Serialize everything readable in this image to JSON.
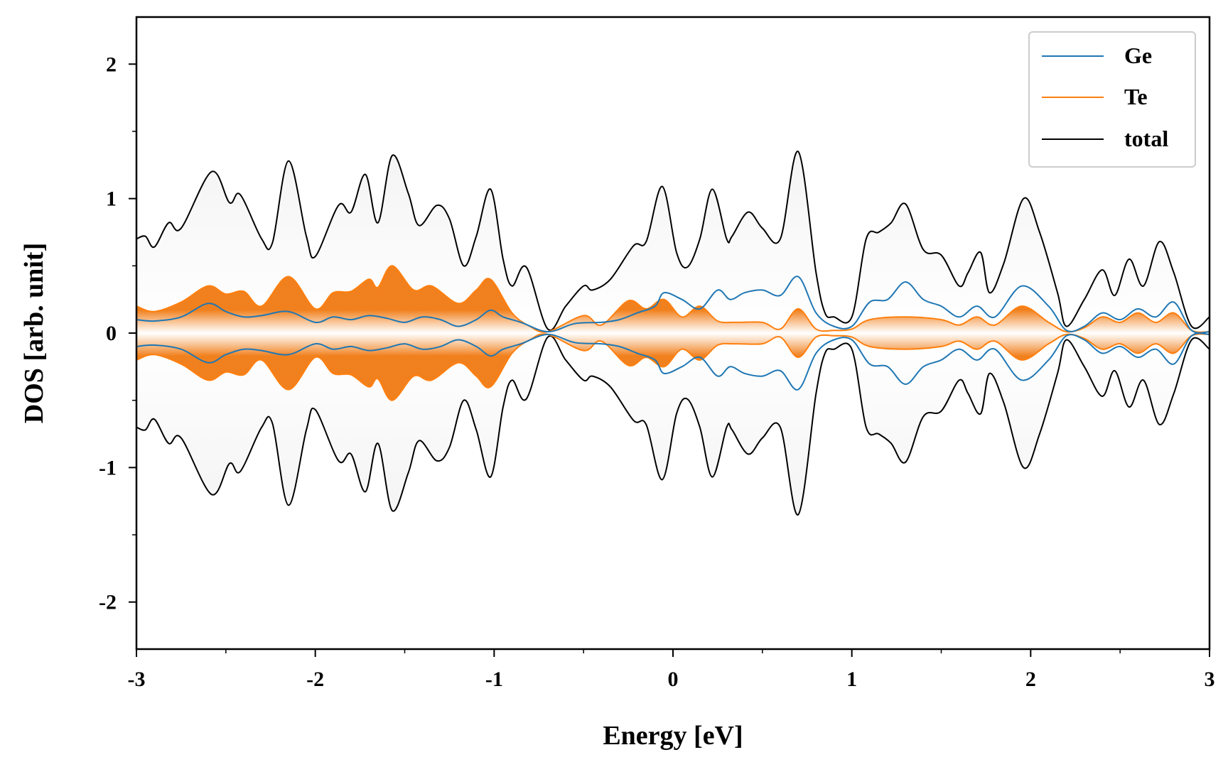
{
  "chart_data": {
    "type": "line",
    "xlabel": "Energy [eV]",
    "ylabel": "DOS [arb. unit]",
    "xlim": [
      -3,
      3
    ],
    "ylim": [
      -2.35,
      2.35
    ],
    "x_ticks": [
      -3,
      -2,
      -1,
      0,
      1,
      2,
      3
    ],
    "y_ticks": [
      -2,
      -1,
      0,
      1,
      2
    ],
    "x_tick_labels": [
      "-3",
      "-2",
      "-1",
      "0",
      "1",
      "2",
      "3"
    ],
    "y_tick_labels": [
      "-2",
      "-1",
      "0",
      "1",
      "2"
    ],
    "legend_position": "top-right",
    "grid": false,
    "mirrored_about_zero": true,
    "series": [
      {
        "name": "Ge",
        "color": "#1f77b4",
        "points": [
          [
            -3.0,
            0.1
          ],
          [
            -2.9,
            0.09
          ],
          [
            -2.75,
            0.12
          ],
          [
            -2.6,
            0.22
          ],
          [
            -2.5,
            0.16
          ],
          [
            -2.4,
            0.12
          ],
          [
            -2.3,
            0.13
          ],
          [
            -2.15,
            0.16
          ],
          [
            -2.0,
            0.08
          ],
          [
            -1.9,
            0.12
          ],
          [
            -1.8,
            0.1
          ],
          [
            -1.7,
            0.13
          ],
          [
            -1.6,
            0.11
          ],
          [
            -1.5,
            0.08
          ],
          [
            -1.4,
            0.12
          ],
          [
            -1.3,
            0.1
          ],
          [
            -1.2,
            0.05
          ],
          [
            -1.1,
            0.1
          ],
          [
            -1.02,
            0.17
          ],
          [
            -0.95,
            0.12
          ],
          [
            -0.85,
            0.08
          ],
          [
            -0.7,
            0.01
          ],
          [
            -0.55,
            0.07
          ],
          [
            -0.4,
            0.08
          ],
          [
            -0.3,
            0.1
          ],
          [
            -0.2,
            0.15
          ],
          [
            -0.1,
            0.2
          ],
          [
            -0.05,
            0.3
          ],
          [
            0.05,
            0.25
          ],
          [
            0.15,
            0.18
          ],
          [
            0.25,
            0.32
          ],
          [
            0.32,
            0.25
          ],
          [
            0.4,
            0.3
          ],
          [
            0.5,
            0.32
          ],
          [
            0.6,
            0.28
          ],
          [
            0.7,
            0.42
          ],
          [
            0.8,
            0.15
          ],
          [
            0.9,
            0.05
          ],
          [
            1.0,
            0.05
          ],
          [
            1.1,
            0.23
          ],
          [
            1.2,
            0.25
          ],
          [
            1.3,
            0.38
          ],
          [
            1.4,
            0.25
          ],
          [
            1.5,
            0.2
          ],
          [
            1.6,
            0.12
          ],
          [
            1.7,
            0.2
          ],
          [
            1.8,
            0.12
          ],
          [
            1.95,
            0.35
          ],
          [
            2.1,
            0.2
          ],
          [
            2.2,
            0.02
          ],
          [
            2.3,
            0.05
          ],
          [
            2.4,
            0.15
          ],
          [
            2.5,
            0.1
          ],
          [
            2.6,
            0.18
          ],
          [
            2.7,
            0.12
          ],
          [
            2.8,
            0.23
          ],
          [
            2.9,
            0.02
          ],
          [
            3.0,
            0.01
          ]
        ]
      },
      {
        "name": "Te",
        "color": "#ff7f0e",
        "points": [
          [
            -3.0,
            0.2
          ],
          [
            -2.9,
            0.16
          ],
          [
            -2.75,
            0.23
          ],
          [
            -2.6,
            0.35
          ],
          [
            -2.5,
            0.29
          ],
          [
            -2.4,
            0.31
          ],
          [
            -2.3,
            0.2
          ],
          [
            -2.15,
            0.42
          ],
          [
            -2.0,
            0.18
          ],
          [
            -1.9,
            0.3
          ],
          [
            -1.8,
            0.31
          ],
          [
            -1.7,
            0.4
          ],
          [
            -1.65,
            0.34
          ],
          [
            -1.57,
            0.5
          ],
          [
            -1.45,
            0.32
          ],
          [
            -1.35,
            0.35
          ],
          [
            -1.2,
            0.22
          ],
          [
            -1.1,
            0.32
          ],
          [
            -1.02,
            0.4
          ],
          [
            -0.9,
            0.15
          ],
          [
            -0.8,
            0.05
          ],
          [
            -0.7,
            0.01
          ],
          [
            -0.5,
            0.13
          ],
          [
            -0.4,
            0.06
          ],
          [
            -0.25,
            0.24
          ],
          [
            -0.15,
            0.18
          ],
          [
            -0.05,
            0.25
          ],
          [
            0.05,
            0.12
          ],
          [
            0.15,
            0.2
          ],
          [
            0.25,
            0.09
          ],
          [
            0.35,
            0.08
          ],
          [
            0.5,
            0.08
          ],
          [
            0.6,
            0.03
          ],
          [
            0.7,
            0.18
          ],
          [
            0.8,
            0.03
          ],
          [
            0.9,
            0.02
          ],
          [
            1.0,
            0.03
          ],
          [
            1.1,
            0.1
          ],
          [
            1.3,
            0.12
          ],
          [
            1.5,
            0.1
          ],
          [
            1.6,
            0.06
          ],
          [
            1.7,
            0.12
          ],
          [
            1.8,
            0.06
          ],
          [
            1.95,
            0.2
          ],
          [
            2.1,
            0.08
          ],
          [
            2.2,
            0.01
          ],
          [
            2.3,
            0.04
          ],
          [
            2.4,
            0.12
          ],
          [
            2.5,
            0.08
          ],
          [
            2.6,
            0.15
          ],
          [
            2.7,
            0.08
          ],
          [
            2.8,
            0.15
          ],
          [
            2.9,
            0.02
          ],
          [
            3.0,
            0.01
          ]
        ]
      },
      {
        "name": "total",
        "color": "#000000",
        "points": [
          [
            -3.0,
            0.7
          ],
          [
            -2.95,
            0.72
          ],
          [
            -2.9,
            0.64
          ],
          [
            -2.82,
            0.82
          ],
          [
            -2.75,
            0.78
          ],
          [
            -2.58,
            1.2
          ],
          [
            -2.48,
            0.97
          ],
          [
            -2.42,
            1.03
          ],
          [
            -2.3,
            0.7
          ],
          [
            -2.24,
            0.67
          ],
          [
            -2.15,
            1.28
          ],
          [
            -2.05,
            0.72
          ],
          [
            -2.0,
            0.57
          ],
          [
            -1.87,
            0.95
          ],
          [
            -1.8,
            0.9
          ],
          [
            -1.72,
            1.18
          ],
          [
            -1.65,
            0.82
          ],
          [
            -1.57,
            1.32
          ],
          [
            -1.48,
            1.04
          ],
          [
            -1.42,
            0.8
          ],
          [
            -1.32,
            0.95
          ],
          [
            -1.25,
            0.85
          ],
          [
            -1.17,
            0.5
          ],
          [
            -1.1,
            0.72
          ],
          [
            -1.02,
            1.07
          ],
          [
            -0.95,
            0.55
          ],
          [
            -0.9,
            0.35
          ],
          [
            -0.82,
            0.49
          ],
          [
            -0.7,
            0.03
          ],
          [
            -0.6,
            0.2
          ],
          [
            -0.5,
            0.35
          ],
          [
            -0.45,
            0.32
          ],
          [
            -0.35,
            0.4
          ],
          [
            -0.22,
            0.65
          ],
          [
            -0.15,
            0.68
          ],
          [
            -0.06,
            1.09
          ],
          [
            0.02,
            0.6
          ],
          [
            0.08,
            0.49
          ],
          [
            0.15,
            0.7
          ],
          [
            0.22,
            1.07
          ],
          [
            0.3,
            0.7
          ],
          [
            0.33,
            0.72
          ],
          [
            0.42,
            0.9
          ],
          [
            0.5,
            0.78
          ],
          [
            0.6,
            0.7
          ],
          [
            0.7,
            1.35
          ],
          [
            0.8,
            0.45
          ],
          [
            0.85,
            0.15
          ],
          [
            0.9,
            0.12
          ],
          [
            1.0,
            0.12
          ],
          [
            1.08,
            0.7
          ],
          [
            1.15,
            0.75
          ],
          [
            1.22,
            0.82
          ],
          [
            1.3,
            0.96
          ],
          [
            1.4,
            0.62
          ],
          [
            1.5,
            0.58
          ],
          [
            1.6,
            0.35
          ],
          [
            1.65,
            0.45
          ],
          [
            1.72,
            0.6
          ],
          [
            1.77,
            0.3
          ],
          [
            1.85,
            0.52
          ],
          [
            1.96,
            1.0
          ],
          [
            2.05,
            0.75
          ],
          [
            2.15,
            0.3
          ],
          [
            2.2,
            0.05
          ],
          [
            2.3,
            0.25
          ],
          [
            2.4,
            0.47
          ],
          [
            2.47,
            0.28
          ],
          [
            2.55,
            0.55
          ],
          [
            2.63,
            0.35
          ],
          [
            2.72,
            0.68
          ],
          [
            2.8,
            0.45
          ],
          [
            2.9,
            0.05
          ],
          [
            3.0,
            0.12
          ]
        ]
      }
    ]
  }
}
